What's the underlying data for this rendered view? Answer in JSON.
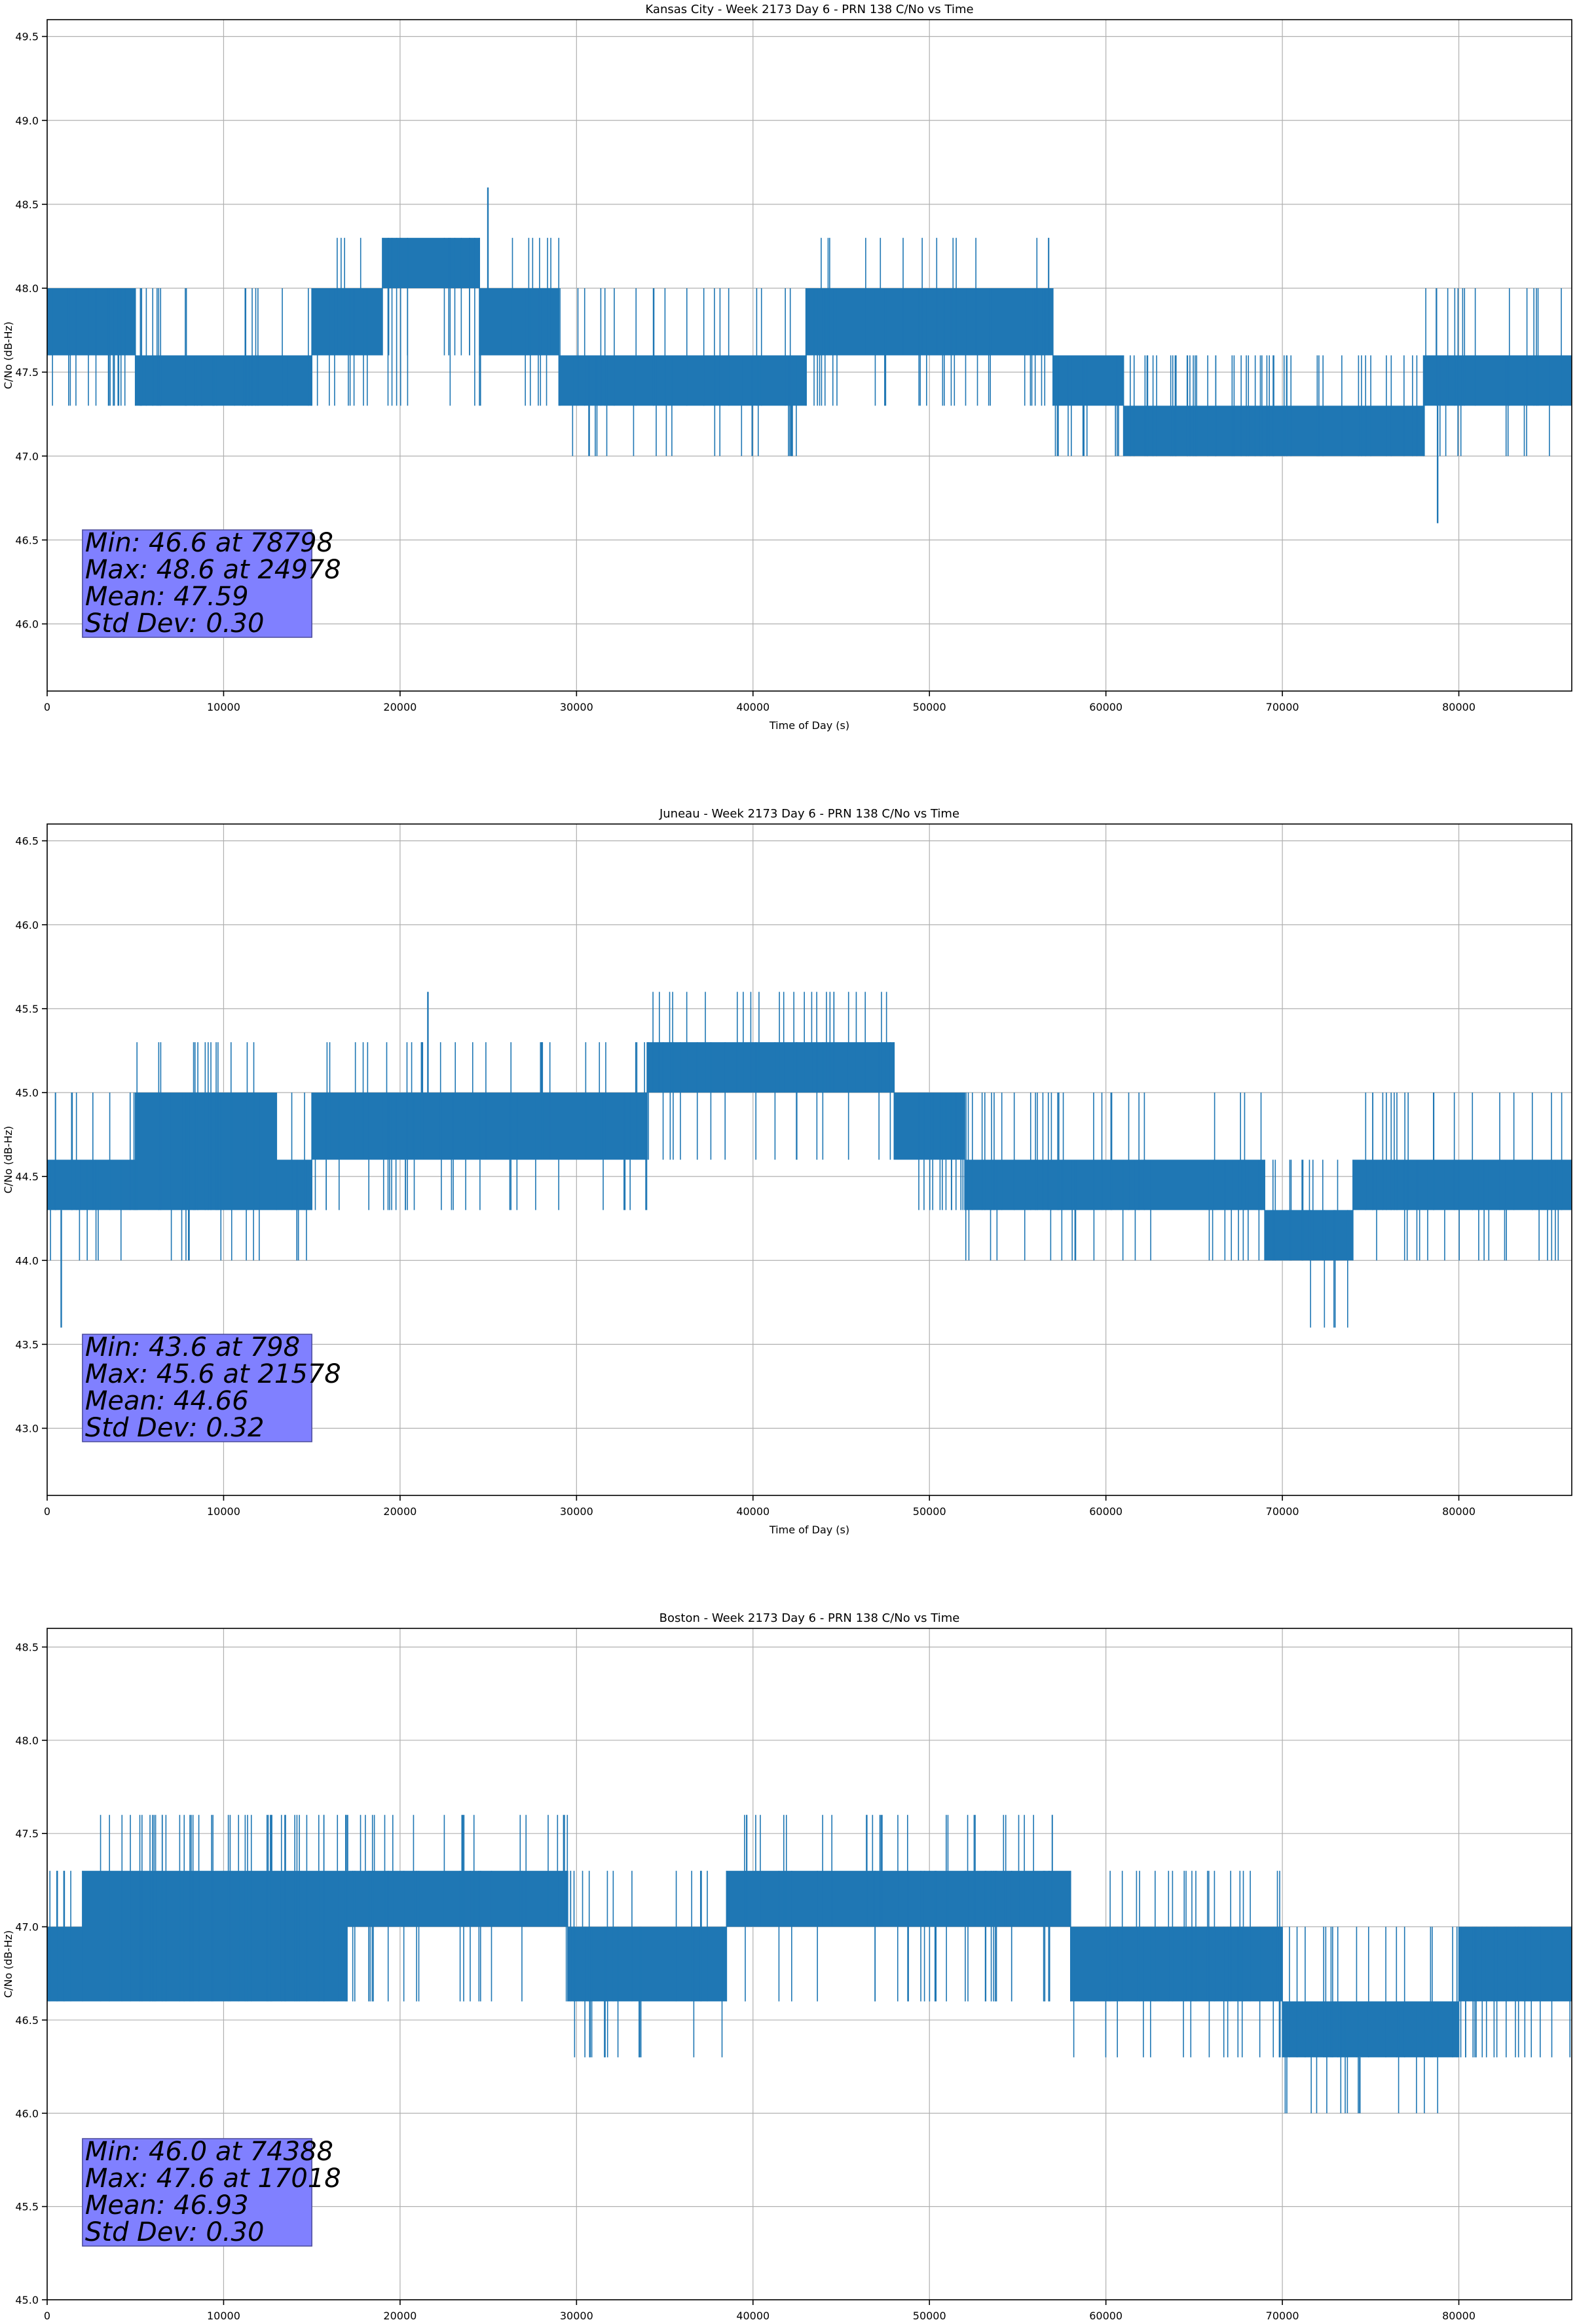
{
  "chart_data": [
    {
      "type": "line",
      "title": "Kansas City - Week 2173 Day 6 - PRN 138 C/No vs Time",
      "xlabel": "Time of Day (s)",
      "ylabel": "C/No (dB-Hz)",
      "xlim": [
        0,
        86400
      ],
      "ylim": [
        45.6,
        49.6
      ],
      "xticks": [
        0,
        10000,
        20000,
        30000,
        40000,
        50000,
        60000,
        70000,
        80000
      ],
      "yticks": [
        46.0,
        46.5,
        47.0,
        47.5,
        48.0,
        48.5,
        49.0,
        49.5
      ],
      "grid": true,
      "series_color": "#1f77b4",
      "stats": [
        "Min: 46.6 at 78798",
        "Max: 48.6 at 24978",
        "Mean: 47.59",
        "Std Dev: 0.30"
      ],
      "segments": [
        {
          "x": [
            0,
            5000
          ],
          "band": [
            47.6,
            48.0
          ],
          "spikes": [
            47.3
          ]
        },
        {
          "x": [
            5000,
            15000
          ],
          "band": [
            47.3,
            47.6
          ],
          "spikes": [
            47.6,
            48.0
          ]
        },
        {
          "x": [
            15000,
            19000
          ],
          "band": [
            47.6,
            48.0
          ],
          "spikes": [
            47.3,
            48.3
          ]
        },
        {
          "x": [
            19000,
            24500
          ],
          "band": [
            48.0,
            48.3
          ],
          "spikes": [
            47.6,
            47.3
          ]
        },
        {
          "x": [
            24500,
            29000
          ],
          "band": [
            47.6,
            48.0
          ],
          "spikes": [
            47.3,
            48.3
          ]
        },
        {
          "x": [
            29000,
            43000
          ],
          "band": [
            47.3,
            47.6
          ],
          "spikes": [
            47.0,
            48.0
          ]
        },
        {
          "x": [
            43000,
            57000
          ],
          "band": [
            47.6,
            48.0
          ],
          "spikes": [
            47.3,
            48.3
          ]
        },
        {
          "x": [
            57000,
            61000
          ],
          "band": [
            47.3,
            47.6
          ],
          "spikes": [
            47.0
          ]
        },
        {
          "x": [
            61000,
            78000
          ],
          "band": [
            47.0,
            47.3
          ],
          "spikes": [
            47.6
          ]
        },
        {
          "x": [
            78000,
            86400
          ],
          "band": [
            47.3,
            47.6
          ],
          "spikes": [
            47.0,
            48.0
          ]
        }
      ],
      "extremes": [
        {
          "x": 78798,
          "y": 46.6
        },
        {
          "x": 24978,
          "y": 48.6
        }
      ]
    },
    {
      "type": "line",
      "title": "Juneau - Week 2173 Day 6 - PRN 138 C/No vs Time",
      "xlabel": "Time of Day (s)",
      "ylabel": "C/No (dB-Hz)",
      "xlim": [
        0,
        86400
      ],
      "ylim": [
        42.6,
        46.6
      ],
      "xticks": [
        0,
        10000,
        20000,
        30000,
        40000,
        50000,
        60000,
        70000,
        80000
      ],
      "yticks": [
        43.0,
        43.5,
        44.0,
        44.5,
        45.0,
        45.5,
        46.0,
        46.5
      ],
      "grid": true,
      "series_color": "#1f77b4",
      "stats": [
        "Min: 43.6 at 798",
        "Max: 45.6 at 21578",
        "Mean: 44.66",
        "Std Dev: 0.32"
      ],
      "segments": [
        {
          "x": [
            0,
            5000
          ],
          "band": [
            44.3,
            44.6
          ],
          "spikes": [
            44.0,
            45.0
          ]
        },
        {
          "x": [
            5000,
            13000
          ],
          "band": [
            44.3,
            45.0
          ],
          "spikes": [
            44.0,
            45.3
          ]
        },
        {
          "x": [
            13000,
            15000
          ],
          "band": [
            44.3,
            44.6
          ],
          "spikes": [
            44.0,
            45.0
          ]
        },
        {
          "x": [
            15000,
            34000
          ],
          "band": [
            44.6,
            45.0
          ],
          "spikes": [
            44.3,
            45.3
          ]
        },
        {
          "x": [
            34000,
            48000
          ],
          "band": [
            45.0,
            45.3
          ],
          "spikes": [
            44.6,
            45.6
          ]
        },
        {
          "x": [
            48000,
            52000
          ],
          "band": [
            44.6,
            45.0
          ],
          "spikes": [
            44.3
          ]
        },
        {
          "x": [
            52000,
            69000
          ],
          "band": [
            44.3,
            44.6
          ],
          "spikes": [
            44.0,
            45.0
          ]
        },
        {
          "x": [
            69000,
            74000
          ],
          "band": [
            44.0,
            44.3
          ],
          "spikes": [
            43.6,
            44.6
          ]
        },
        {
          "x": [
            74000,
            86400
          ],
          "band": [
            44.3,
            44.6
          ],
          "spikes": [
            44.0,
            45.0
          ]
        }
      ],
      "extremes": [
        {
          "x": 798,
          "y": 43.6
        },
        {
          "x": 21578,
          "y": 45.6
        }
      ]
    },
    {
      "type": "line",
      "title": "Boston - Week 2173 Day 6 - PRN 138 C/No vs Time",
      "xlabel": "Time of Day (s)",
      "ylabel": "C/No (dB-Hz)",
      "xlim": [
        0,
        86400
      ],
      "ylim": [
        45.0,
        48.6
      ],
      "xticks": [
        0,
        10000,
        20000,
        30000,
        40000,
        50000,
        60000,
        70000,
        80000
      ],
      "yticks": [
        45.0,
        45.5,
        46.0,
        46.5,
        47.0,
        47.5,
        48.0,
        48.5
      ],
      "grid": true,
      "series_color": "#1f77b4",
      "stats": [
        "Min: 46.0 at 74388",
        "Max: 47.6 at 17018",
        "Mean: 46.93",
        "Std Dev: 0.30"
      ],
      "segments": [
        {
          "x": [
            0,
            2000
          ],
          "band": [
            46.6,
            47.0
          ],
          "spikes": [
            47.3
          ]
        },
        {
          "x": [
            2000,
            17000
          ],
          "band": [
            46.6,
            47.3
          ],
          "spikes": [
            47.6
          ]
        },
        {
          "x": [
            17000,
            29500
          ],
          "band": [
            47.0,
            47.3
          ],
          "spikes": [
            46.6,
            47.6
          ]
        },
        {
          "x": [
            29500,
            38500
          ],
          "band": [
            46.6,
            47.0
          ],
          "spikes": [
            46.3,
            47.3
          ]
        },
        {
          "x": [
            38500,
            58000
          ],
          "band": [
            47.0,
            47.3
          ],
          "spikes": [
            46.6,
            47.6
          ]
        },
        {
          "x": [
            58000,
            70000
          ],
          "band": [
            46.6,
            47.0
          ],
          "spikes": [
            46.3,
            47.3
          ]
        },
        {
          "x": [
            70000,
            80000
          ],
          "band": [
            46.3,
            46.6
          ],
          "spikes": [
            46.0,
            47.0
          ]
        },
        {
          "x": [
            80000,
            86400
          ],
          "band": [
            46.6,
            47.0
          ],
          "spikes": [
            46.3
          ]
        }
      ],
      "extremes": [
        {
          "x": 74388,
          "y": 46.0
        },
        {
          "x": 17018,
          "y": 47.6
        }
      ]
    }
  ]
}
